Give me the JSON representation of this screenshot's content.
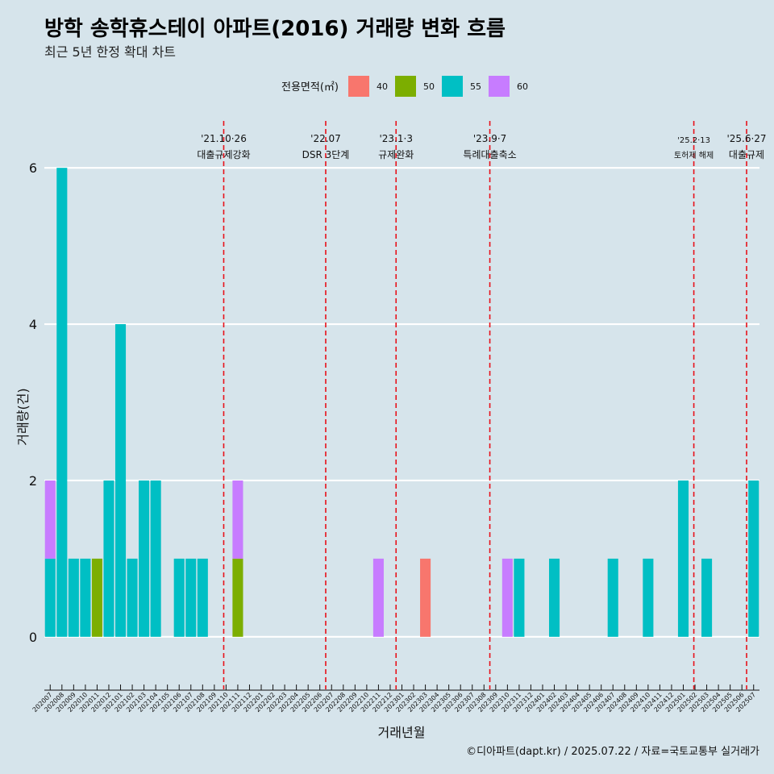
{
  "chart_data": {
    "type": "bar",
    "title": "방학 송학휴스테이 아파트(2016) 거래량 변화 흐름",
    "subtitle": "최근 5년 한정 확대 차트",
    "xlabel": "거래년월",
    "ylabel": "거래량(건)",
    "caption": "©디아파트(dapt.kr) / 2025.07.22 / 자료=국토교통부 실거래가",
    "ylim": [
      -0.6,
      6.6
    ],
    "yticks": [
      0,
      2,
      4,
      6
    ],
    "grid": true,
    "legend": {
      "title": "전용면적(㎡)",
      "placement": "top",
      "items": [
        {
          "label": "40",
          "color": "#F8766D"
        },
        {
          "label": "50",
          "color": "#7CAE00"
        },
        {
          "label": "55",
          "color": "#00BFC4"
        },
        {
          "label": "60",
          "color": "#C77CFF"
        }
      ]
    },
    "categories": [
      "202007",
      "202008",
      "202009",
      "202010",
      "202011",
      "202012",
      "202101",
      "202102",
      "202103",
      "202104",
      "202105",
      "202106",
      "202107",
      "202108",
      "202109",
      "202110",
      "202111",
      "202112",
      "202201",
      "202202",
      "202203",
      "202204",
      "202205",
      "202206",
      "202207",
      "202208",
      "202209",
      "202210",
      "202211",
      "202212",
      "202301",
      "202302",
      "202303",
      "202304",
      "202305",
      "202306",
      "202307",
      "202308",
      "202309",
      "202310",
      "202311",
      "202312",
      "202401",
      "202402",
      "202403",
      "202404",
      "202405",
      "202406",
      "202407",
      "202408",
      "202409",
      "202410",
      "202411",
      "202412",
      "202501",
      "202502",
      "202503",
      "202504",
      "202505",
      "202506",
      "202507"
    ],
    "series": [
      {
        "name": "40",
        "color": "#F8766D",
        "values": [
          0,
          0,
          0,
          0,
          0,
          0,
          0,
          0,
          0,
          0,
          0,
          0,
          0,
          0,
          0,
          0,
          0,
          0,
          0,
          0,
          0,
          0,
          0,
          0,
          0,
          0,
          0,
          0,
          0,
          0,
          0,
          0,
          1,
          0,
          0,
          0,
          0,
          0,
          0,
          0,
          0,
          0,
          0,
          0,
          0,
          0,
          0,
          0,
          0,
          0,
          0,
          0,
          0,
          0,
          0,
          0,
          0,
          0,
          0,
          0,
          0
        ]
      },
      {
        "name": "50",
        "color": "#7CAE00",
        "values": [
          0,
          0,
          0,
          0,
          1,
          0,
          0,
          0,
          0,
          0,
          0,
          0,
          0,
          0,
          0,
          0,
          1,
          0,
          0,
          0,
          0,
          0,
          0,
          0,
          0,
          0,
          0,
          0,
          0,
          0,
          0,
          0,
          0,
          0,
          0,
          0,
          0,
          0,
          0,
          0,
          0,
          0,
          0,
          0,
          0,
          0,
          0,
          0,
          0,
          0,
          0,
          0,
          0,
          0,
          0,
          0,
          0,
          0,
          0,
          0,
          0
        ]
      },
      {
        "name": "55",
        "color": "#00BFC4",
        "values": [
          1,
          6,
          1,
          1,
          0,
          2,
          4,
          1,
          2,
          2,
          0,
          1,
          1,
          1,
          0,
          0,
          0,
          0,
          0,
          0,
          0,
          0,
          0,
          0,
          0,
          0,
          0,
          0,
          0,
          0,
          0,
          0,
          0,
          0,
          0,
          0,
          0,
          0,
          0,
          0,
          1,
          0,
          0,
          1,
          0,
          0,
          0,
          0,
          1,
          0,
          0,
          1,
          0,
          0,
          2,
          0,
          1,
          0,
          0,
          0,
          2
        ]
      },
      {
        "name": "60",
        "color": "#C77CFF",
        "values": [
          1,
          0,
          0,
          0,
          0,
          0,
          0,
          0,
          0,
          0,
          0,
          0,
          0,
          0,
          0,
          0,
          1,
          0,
          0,
          0,
          0,
          0,
          0,
          0,
          0,
          0,
          0,
          0,
          1,
          0,
          0,
          0,
          0,
          0,
          0,
          0,
          0,
          0,
          0,
          1,
          0,
          0,
          0,
          0,
          0,
          0,
          0,
          0,
          0,
          0,
          0,
          0,
          0,
          0,
          0,
          0,
          0,
          0,
          0,
          0,
          0
        ]
      }
    ],
    "annotations": [
      {
        "x": "202110",
        "offset": 0.3,
        "date": "'21.10·26",
        "label": "대출규제강화"
      },
      {
        "x": "202207",
        "offset": 0.0,
        "date": "'22.07",
        "label": "DSR 3단계"
      },
      {
        "x": "202301",
        "offset": 0.0,
        "date": "'23.1·3",
        "label": "규제완화"
      },
      {
        "x": "202309",
        "offset": 0.0,
        "date": "'23.9·7",
        "label": "특례대출축소"
      },
      {
        "x": "202502",
        "offset": 0.4,
        "date": "'25.2·13",
        "label": "토허제 해제"
      },
      {
        "x": "202506",
        "offset": 0.9,
        "date": "'25.6·27",
        "label": "대출규제"
      }
    ]
  }
}
